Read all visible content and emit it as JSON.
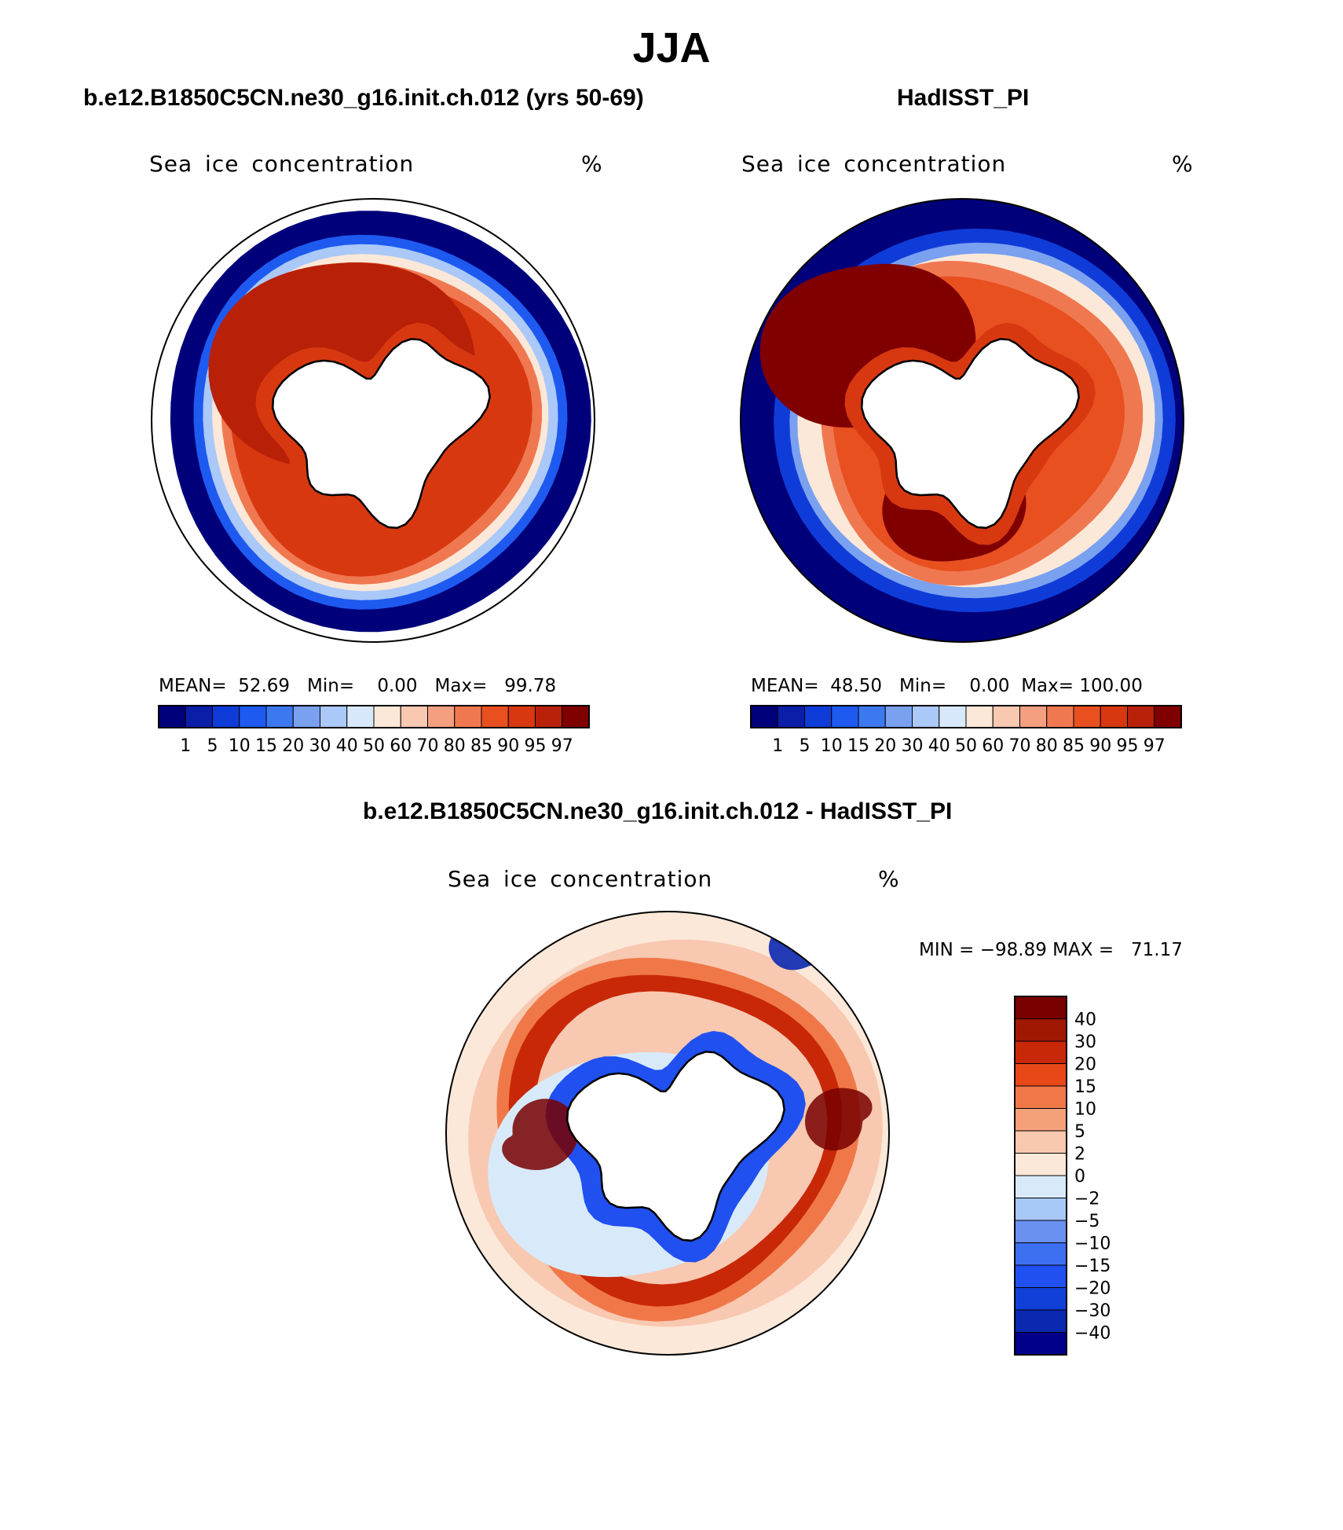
{
  "page": {
    "title": "JJA"
  },
  "colors": {
    "absolute_scale": [
      "#00007a",
      "#0a1ea8",
      "#0f3cd8",
      "#1e5af0",
      "#3c78f0",
      "#7aa0f0",
      "#aac8f8",
      "#d8e8fa",
      "#fce8d8",
      "#f8c8b0",
      "#f4a080",
      "#f07850",
      "#e85020",
      "#d83810",
      "#b82008",
      "#800000"
    ],
    "diff_scale": [
      "#00008a",
      "#0a28b0",
      "#1040d8",
      "#2050f0",
      "#3c70f0",
      "#6a90f0",
      "#a8c8f8",
      "#d8eafa",
      "#fce8d8",
      "#f8c8b0",
      "#f4a078",
      "#f07848",
      "#e84818",
      "#c82808",
      "#a01800",
      "#780000"
    ],
    "land": "#ffffff",
    "outline": "#000000"
  },
  "panels": [
    {
      "id": "model",
      "title": "b.e12.B1850C5CN.ne30_g16.init.ch.012 (yrs 50-69)",
      "variable": "Sea ice concentration",
      "units": "%",
      "stats": {
        "mean_label": "MEAN=",
        "mean": "52.69",
        "min_label": "Min=",
        "min": "0.00",
        "max_label": "Max=",
        "max": "99.78"
      },
      "colorbar_ticks": [
        "1",
        "5",
        "10",
        "15",
        "20",
        "30",
        "40",
        "50",
        "60",
        "70",
        "80",
        "85",
        "90",
        "95",
        "97"
      ]
    },
    {
      "id": "obs",
      "title": "HadISST_PI",
      "variable": "Sea ice concentration",
      "units": "%",
      "stats": {
        "mean_label": "MEAN=",
        "mean": "48.50",
        "min_label": "Min=",
        "min": "0.00",
        "max_label": "Max=",
        "max": "100.00"
      },
      "colorbar_ticks": [
        "1",
        "5",
        "10",
        "15",
        "20",
        "30",
        "40",
        "50",
        "60",
        "70",
        "80",
        "85",
        "90",
        "95",
        "97"
      ]
    },
    {
      "id": "diff",
      "title": "b.e12.B1850C5CN.ne30_g16.init.ch.012 - HadISST_PI",
      "variable": "Sea ice concentration",
      "units": "%",
      "stats_text": {
        "min_label": "MIN =",
        "min": "−98.89",
        "max_label": "MAX =",
        "max": "71.17"
      },
      "colorbar_ticks": [
        "40",
        "30",
        "20",
        "15",
        "10",
        "5",
        "2",
        "0",
        "−2",
        "−5",
        "−10",
        "−15",
        "−20",
        "−30",
        "−40"
      ]
    }
  ]
}
